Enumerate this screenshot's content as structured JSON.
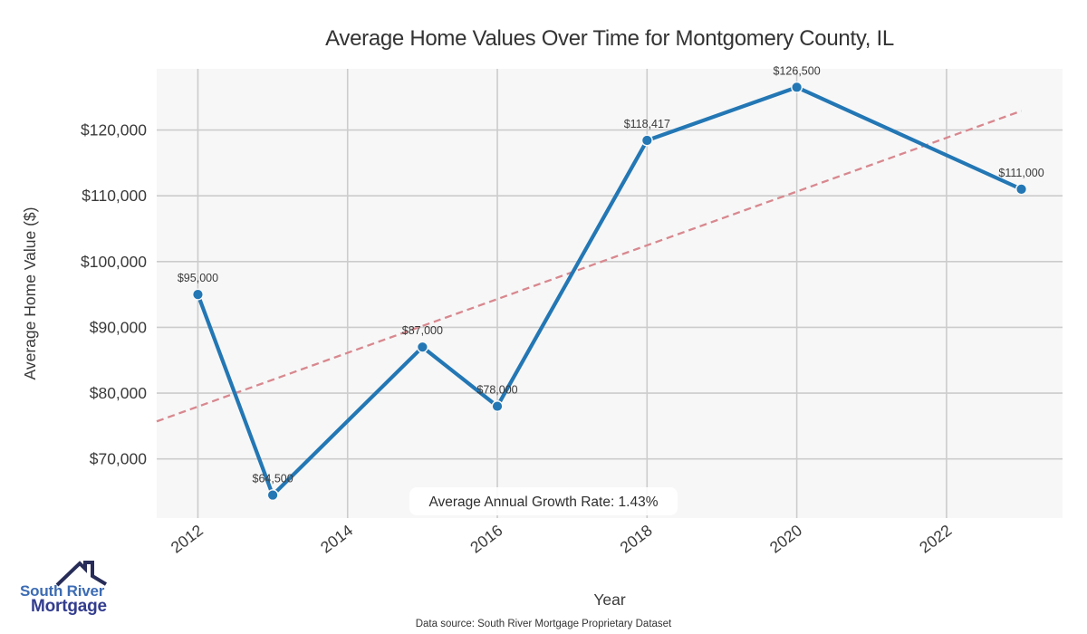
{
  "chart_data": {
    "type": "line",
    "title": "Average Home Values Over Time for Montgomery County, IL",
    "xlabel": "Year",
    "ylabel": "Average Home Value ($)",
    "x": [
      2012,
      2013,
      2015,
      2016,
      2018,
      2020,
      2023
    ],
    "values": [
      95000,
      64500,
      87000,
      78000,
      118417,
      126500,
      111000
    ],
    "point_labels": [
      "$95,000",
      "$64,500",
      "$87,000",
      "$78,000",
      "$118,417",
      "$126,500",
      "$111,000"
    ],
    "xticks": [
      2012,
      2014,
      2016,
      2018,
      2020,
      2022
    ],
    "xtick_labels": [
      "2012",
      "2014",
      "2016",
      "2018",
      "2020",
      "2022"
    ],
    "yticks": [
      70000,
      80000,
      90000,
      100000,
      110000,
      120000
    ],
    "ytick_labels": [
      "$70,000",
      "$80,000",
      "$90,000",
      "$100,000",
      "$110,000",
      "$120,000"
    ],
    "xlim": [
      2011.45,
      2023.55
    ],
    "ylim": [
      61000,
      129300
    ],
    "grid": true,
    "legend": "none",
    "trend": {
      "style": "dashed",
      "x": [
        2011.45,
        2023.0
      ],
      "values": [
        75700,
        122900
      ],
      "slope_per_year": 4083
    },
    "annotation": "Average Annual Growth Rate: 1.43%",
    "colors": {
      "line": "#2377b4",
      "marker": "#2377b4",
      "marker_edge": "#f9f9f9",
      "trend": "#d8888f",
      "plot_bg": "#f7f7f7",
      "grid": "#cccccc",
      "text": "#3a3a3a"
    }
  },
  "footer": {
    "source": "Data source: South River Mortgage Proprietary Dataset"
  },
  "logo": {
    "line1": "South River",
    "line2": "Mortgage",
    "colors": {
      "line1": "#3c6cb4",
      "line2": "#333d8e",
      "icon": "#272d58"
    }
  }
}
